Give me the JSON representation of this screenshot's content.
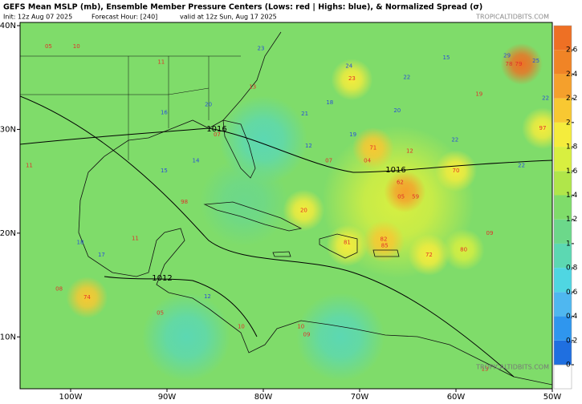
{
  "header": {
    "title": "GEFS Mean MSLP (mb), Ensemble Member Pressure Centers (Lows: red | Highs: blue), & Normalized Spread (σ)",
    "init": "Init: 12z Aug 07 2025",
    "forecast_hour": "Forecast Hour: [240]",
    "valid": "valid at 12z Sun, Aug 17 2025"
  },
  "credit": "TROPICALTIDBITS.COM",
  "map": {
    "xlim": [
      -105.25,
      -50
    ],
    "ylim": [
      5,
      40
    ],
    "xticks": [
      {
        "value": -100,
        "label": "100W"
      },
      {
        "value": -90,
        "label": "90W"
      },
      {
        "value": -80,
        "label": "80W"
      },
      {
        "value": -70,
        "label": "70W"
      },
      {
        "value": -60,
        "label": "60W"
      },
      {
        "value": -50,
        "label": "50W"
      }
    ],
    "yticks": [
      {
        "value": 10,
        "label": "10N"
      },
      {
        "value": 20,
        "label": "20N"
      },
      {
        "value": 30,
        "label": "30N"
      },
      {
        "value": 40,
        "label": "40N"
      }
    ],
    "background_spread": 1.2,
    "spread_areas": [
      {
        "lon": -66,
        "lat": 23,
        "value": 1.6
      },
      {
        "lon": -80,
        "lat": 29,
        "value": 0.8
      },
      {
        "lon": -72,
        "lat": 10,
        "value": 0.8
      },
      {
        "lon": -88,
        "lat": 10,
        "value": 0.8
      },
      {
        "lon": -82,
        "lat": 23,
        "value": 1.0
      },
      {
        "lon": -68.6,
        "lat": 28.2,
        "value": 2.0
      },
      {
        "lon": -65.3,
        "lat": 24,
        "value": 2.2
      },
      {
        "lon": -67.5,
        "lat": 19.2,
        "value": 2.0
      },
      {
        "lon": -71.3,
        "lat": 18.8,
        "value": 1.9
      },
      {
        "lon": -60,
        "lat": 26,
        "value": 1.9
      },
      {
        "lon": -53.2,
        "lat": 36.3,
        "value": 2.6
      },
      {
        "lon": -98.3,
        "lat": 13.8,
        "value": 2.0
      },
      {
        "lon": -75.8,
        "lat": 22.2,
        "value": 1.9
      },
      {
        "lon": -62.8,
        "lat": 17.9,
        "value": 1.8
      },
      {
        "lon": -59.2,
        "lat": 18.4,
        "value": 1.7
      },
      {
        "lon": -70.8,
        "lat": 34.8,
        "value": 1.8
      },
      {
        "lon": -51,
        "lat": 30.1,
        "value": 1.8
      }
    ],
    "isobars": [
      {
        "label": "1016"
      },
      {
        "label": "1016"
      },
      {
        "label": "1012"
      }
    ]
  },
  "colorbar": {
    "lim": [
      0,
      2.8
    ],
    "ticks": [
      0,
      0.2,
      0.4,
      0.6,
      0.8,
      1,
      1.2,
      1.4,
      1.6,
      1.8,
      2,
      2.2,
      2.4,
      2.6
    ],
    "colors": [
      "#1f6fe0",
      "#2f96ee",
      "#4fb7f0",
      "#4fd6e2",
      "#5cd8b2",
      "#6cd88a",
      "#7fdc6a",
      "#b0e64a",
      "#d8ef40",
      "#f5ec3c",
      "#f8c832",
      "#f5a02c",
      "#f08426",
      "#ee7024"
    ]
  },
  "lows": [
    {
      "lon": -102.3,
      "lat": 38,
      "label": "05"
    },
    {
      "lon": -99.4,
      "lat": 38,
      "label": "10"
    },
    {
      "lon": -90.6,
      "lat": 36.5,
      "label": "11"
    },
    {
      "lon": -81.1,
      "lat": 34.1,
      "label": "13"
    },
    {
      "lon": -70.8,
      "lat": 34.9,
      "label": "23"
    },
    {
      "lon": -68.6,
      "lat": 28.2,
      "label": "71"
    },
    {
      "lon": -69.2,
      "lat": 27,
      "label": "04"
    },
    {
      "lon": -64.8,
      "lat": 27.9,
      "label": "12"
    },
    {
      "lon": -60,
      "lat": 26,
      "label": "70"
    },
    {
      "lon": -65.8,
      "lat": 24.9,
      "label": "62"
    },
    {
      "lon": -64.2,
      "lat": 23.5,
      "label": "59"
    },
    {
      "lon": -65.7,
      "lat": 23.5,
      "label": "05"
    },
    {
      "lon": -75.8,
      "lat": 22.2,
      "label": "20"
    },
    {
      "lon": -88.2,
      "lat": 23,
      "label": "98"
    },
    {
      "lon": -71.3,
      "lat": 19.1,
      "label": "81"
    },
    {
      "lon": -67.5,
      "lat": 19.4,
      "label": "82"
    },
    {
      "lon": -67.4,
      "lat": 18.8,
      "label": "85"
    },
    {
      "lon": -62.8,
      "lat": 17.9,
      "label": "72"
    },
    {
      "lon": -59.2,
      "lat": 18.4,
      "label": "80"
    },
    {
      "lon": -98.3,
      "lat": 13.8,
      "label": "74"
    },
    {
      "lon": -101.2,
      "lat": 14.6,
      "label": "08"
    },
    {
      "lon": -90.7,
      "lat": 12.3,
      "label": "05"
    },
    {
      "lon": -82.3,
      "lat": 11,
      "label": "10"
    },
    {
      "lon": -76.1,
      "lat": 11,
      "label": "10"
    },
    {
      "lon": -75.5,
      "lat": 10.2,
      "label": "09"
    },
    {
      "lon": -57,
      "lat": 6.9,
      "label": "13"
    },
    {
      "lon": -51,
      "lat": 30.1,
      "label": "97"
    },
    {
      "lon": -57.6,
      "lat": 33.4,
      "label": "19"
    },
    {
      "lon": -104.3,
      "lat": 26.5,
      "label": "11"
    },
    {
      "lon": -73.2,
      "lat": 27,
      "label": "07"
    },
    {
      "lon": -84.8,
      "lat": 29.5,
      "label": "07"
    },
    {
      "lon": -93.3,
      "lat": 19.5,
      "label": "11"
    },
    {
      "lon": -56.5,
      "lat": 20,
      "label": "09"
    },
    {
      "lon": -54.5,
      "lat": 36.3,
      "label": "78"
    },
    {
      "lon": -53.5,
      "lat": 36.3,
      "label": "79"
    }
  ],
  "highs": [
    {
      "lon": -80.25,
      "lat": 37.8,
      "label": "23"
    },
    {
      "lon": -65.1,
      "lat": 35,
      "label": "22"
    },
    {
      "lon": -61,
      "lat": 36.9,
      "label": "15"
    },
    {
      "lon": -54.7,
      "lat": 37.1,
      "label": "29"
    },
    {
      "lon": -51.7,
      "lat": 36.6,
      "label": "25"
    },
    {
      "lon": -50.7,
      "lat": 33,
      "label": "22"
    },
    {
      "lon": -71.1,
      "lat": 36.1,
      "label": "24"
    },
    {
      "lon": -73.1,
      "lat": 32.6,
      "label": "18"
    },
    {
      "lon": -75.7,
      "lat": 31.5,
      "label": "21"
    },
    {
      "lon": -85.7,
      "lat": 32.4,
      "label": "20"
    },
    {
      "lon": -90.3,
      "lat": 31.6,
      "label": "16"
    },
    {
      "lon": -75.3,
      "lat": 28.4,
      "label": "12"
    },
    {
      "lon": -70.7,
      "lat": 29.5,
      "label": "19"
    },
    {
      "lon": -60.1,
      "lat": 29,
      "label": "22"
    },
    {
      "lon": -90.3,
      "lat": 26,
      "label": "15"
    },
    {
      "lon": -87,
      "lat": 27,
      "label": "14"
    },
    {
      "lon": -99,
      "lat": 19.1,
      "label": "18"
    },
    {
      "lon": -96.8,
      "lat": 17.9,
      "label": "17"
    },
    {
      "lon": -85.8,
      "lat": 13.9,
      "label": "12"
    },
    {
      "lon": -66.1,
      "lat": 31.8,
      "label": "20"
    },
    {
      "lon": -53.2,
      "lat": 26.5,
      "label": "22"
    }
  ]
}
